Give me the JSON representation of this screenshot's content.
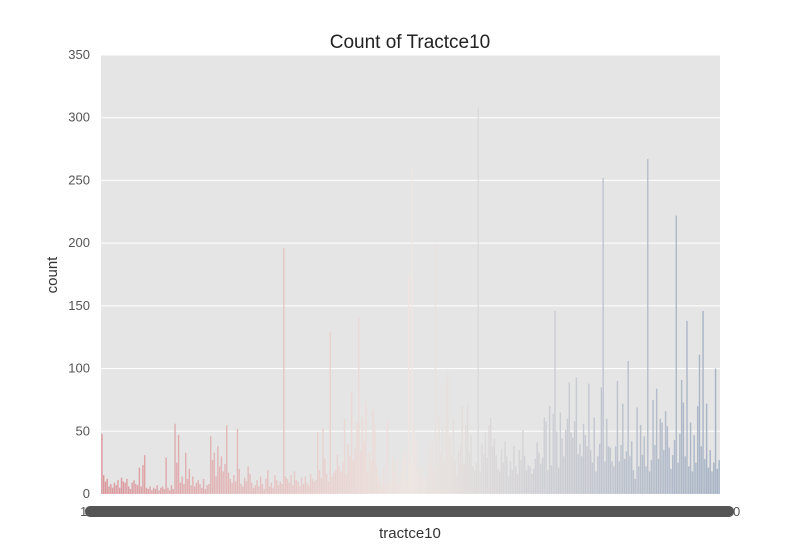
{
  "chart_data": {
    "type": "bar",
    "title": "Count of Tractce10",
    "xlabel": "tractce10",
    "ylabel": "count",
    "ylim": [
      0,
      350
    ],
    "yticks": [
      0,
      50,
      100,
      150,
      200,
      250,
      300,
      350
    ],
    "grid": true,
    "legend": "none",
    "palette_start": "#d98b91",
    "palette_mid": "#f0e6e0",
    "palette_end": "#9aa9bf",
    "x_tick_first": "1",
    "x_tick_last": "0",
    "values": [
      48,
      15,
      10,
      12,
      6,
      8,
      5,
      9,
      7,
      11,
      5,
      13,
      10,
      9,
      12,
      6,
      4,
      9,
      11,
      8,
      7,
      21,
      6,
      23,
      31,
      5,
      4,
      6,
      3,
      5,
      4,
      7,
      3,
      5,
      6,
      4,
      29,
      5,
      3,
      7,
      4,
      56,
      25,
      47,
      9,
      14,
      8,
      33,
      12,
      20,
      7,
      14,
      6,
      9,
      11,
      8,
      5,
      12,
      4,
      7,
      8,
      46,
      27,
      33,
      14,
      38,
      22,
      30,
      18,
      24,
      55,
      17,
      12,
      9,
      15,
      10,
      52,
      20,
      8,
      6,
      13,
      10,
      22,
      16,
      9,
      5,
      7,
      11,
      6,
      14,
      8,
      4,
      12,
      19,
      6,
      9,
      5,
      15,
      11,
      7,
      10,
      8,
      196,
      14,
      12,
      9,
      15,
      7,
      18,
      11,
      10,
      6,
      13,
      8,
      14,
      9,
      7,
      16,
      12,
      10,
      11,
      49,
      19,
      13,
      52,
      28,
      16,
      10,
      129,
      14,
      17,
      19,
      31,
      22,
      18,
      25,
      60,
      16,
      40,
      30,
      81,
      27,
      36,
      57,
      140,
      35,
      61,
      42,
      74,
      18,
      33,
      26,
      67,
      55,
      22,
      14,
      10,
      6,
      21,
      7,
      58,
      9,
      12,
      30,
      18,
      26,
      9,
      14,
      17,
      28,
      35,
      11,
      175,
      28,
      261,
      51,
      46,
      18,
      22,
      15,
      20,
      14,
      10,
      26,
      37,
      42,
      18,
      199,
      22,
      61,
      33,
      54,
      26,
      88,
      97,
      47,
      31,
      60,
      28,
      15,
      34,
      39,
      70,
      25,
      55,
      71,
      33,
      47,
      22,
      18,
      25,
      308,
      18,
      40,
      31,
      49,
      29,
      55,
      61,
      38,
      44,
      31,
      20,
      18,
      36,
      25,
      42,
      30,
      14,
      26,
      19,
      38,
      22,
      16,
      35,
      27,
      51,
      30,
      19,
      23,
      22,
      16,
      20,
      28,
      41,
      33,
      24,
      29,
      61,
      58,
      19,
      70,
      23,
      64,
      146,
      50,
      21,
      65,
      44,
      30,
      51,
      60,
      89,
      49,
      45,
      58,
      93,
      32,
      40,
      30,
      56,
      47,
      38,
      88,
      35,
      25,
      61,
      18,
      30,
      40,
      85,
      252,
      26,
      60,
      38,
      37,
      26,
      22,
      38,
      90,
      26,
      39,
      72,
      28,
      34,
      106,
      30,
      42,
      19,
      12,
      69,
      22,
      55,
      31,
      46,
      22,
      267,
      18,
      27,
      75,
      39,
      84,
      28,
      60,
      57,
      35,
      66,
      54,
      37,
      20,
      31,
      43,
      222,
      25,
      48,
      91,
      73,
      30,
      138,
      22,
      57,
      18,
      47,
      25,
      70,
      111,
      38,
      146,
      28,
      72,
      21,
      35,
      18,
      25,
      100,
      20,
      27
    ]
  }
}
